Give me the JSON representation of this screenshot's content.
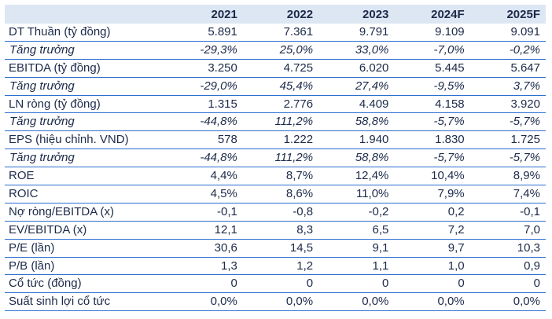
{
  "table": {
    "corner": "",
    "columns": [
      "2021",
      "2022",
      "2023",
      "2024F",
      "2025F"
    ],
    "rows": [
      {
        "label": "DT Thuần (tỷ đồng)",
        "values": [
          "5.891",
          "7.361",
          "9.791",
          "9.109",
          "9.091"
        ],
        "growth": false
      },
      {
        "label": "Tăng trưởng",
        "values": [
          "-29,3%",
          "25,0%",
          "33,0%",
          "-7,0%",
          "-0,2%"
        ],
        "growth": true
      },
      {
        "label": "EBITDA (tỷ đồng)",
        "values": [
          "3.250",
          "4.725",
          "6.020",
          "5.445",
          "5.647"
        ],
        "growth": false
      },
      {
        "label": "Tăng trưởng",
        "values": [
          "-29,0%",
          "45,4%",
          "27,4%",
          "-9,5%",
          "3,7%"
        ],
        "growth": true
      },
      {
        "label": "LN ròng (tỷ đồng)",
        "values": [
          "1.315",
          "2.776",
          "4.409",
          "4.158",
          "3.920"
        ],
        "growth": false
      },
      {
        "label": "Tăng trưởng",
        "values": [
          "-44,8%",
          "111,2%",
          "58,8%",
          "-5,7%",
          "-5,7%"
        ],
        "growth": true
      },
      {
        "label": "EPS (hiệu chỉnh. VND)",
        "values": [
          "578",
          "1.222",
          "1.940",
          "1.830",
          "1.725"
        ],
        "growth": false
      },
      {
        "label": "Tăng trưởng",
        "values": [
          "-44,8%",
          "111,2%",
          "58,8%",
          "-5,7%",
          "-5,7%"
        ],
        "growth": true
      },
      {
        "label": "ROE",
        "values": [
          "4,4%",
          "8,7%",
          "12,4%",
          "10,4%",
          "8,9%"
        ],
        "growth": false
      },
      {
        "label": "ROIC",
        "values": [
          "4,5%",
          "8,6%",
          "11,0%",
          "7,9%",
          "7,4%"
        ],
        "growth": false
      },
      {
        "label": "Nợ ròng/EBITDA (x)",
        "values": [
          "-0,1",
          "-0,8",
          "-0,2",
          "0,2",
          "-0,1"
        ],
        "growth": false
      },
      {
        "label": "EV/EBITDA (x)",
        "values": [
          "12,1",
          "8,3",
          "6,5",
          "7,2",
          "7,0"
        ],
        "growth": false
      },
      {
        "label": "P/E (lần)",
        "values": [
          "30,6",
          "14,5",
          "9,1",
          "9,7",
          "10,3"
        ],
        "growth": false
      },
      {
        "label": "P/B (lần)",
        "values": [
          "1,3",
          "1,2",
          "1,1",
          "1,0",
          "0,9"
        ],
        "growth": false
      },
      {
        "label": "Cổ tức (đồng)",
        "values": [
          "0",
          "0",
          "0",
          "0",
          "0"
        ],
        "growth": false
      },
      {
        "label": "Suất sinh lợi cổ tức",
        "values": [
          "0,0%",
          "0,0%",
          "0,0%",
          "0,0%",
          "0,0%"
        ],
        "growth": false
      }
    ]
  },
  "colors": {
    "header_bg": "#dde6f3",
    "rule": "#2b6fd0",
    "text": "#1c2a4a"
  }
}
